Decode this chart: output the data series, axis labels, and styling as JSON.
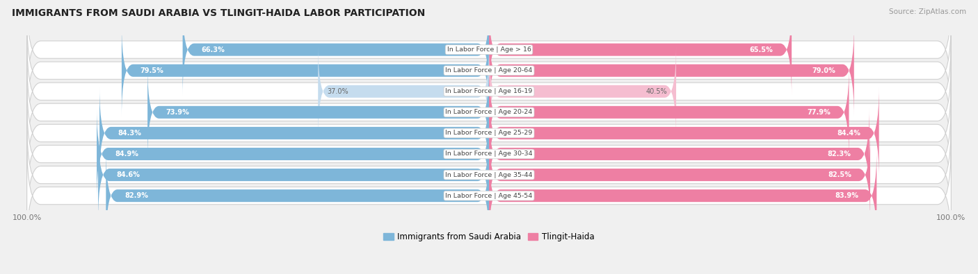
{
  "title": "IMMIGRANTS FROM SAUDI ARABIA VS TLINGIT-HAIDA LABOR PARTICIPATION",
  "source": "Source: ZipAtlas.com",
  "categories": [
    "In Labor Force | Age > 16",
    "In Labor Force | Age 20-64",
    "In Labor Force | Age 16-19",
    "In Labor Force | Age 20-24",
    "In Labor Force | Age 25-29",
    "In Labor Force | Age 30-34",
    "In Labor Force | Age 35-44",
    "In Labor Force | Age 45-54"
  ],
  "saudi_values": [
    66.3,
    79.5,
    37.0,
    73.9,
    84.3,
    84.9,
    84.6,
    82.9
  ],
  "tlingit_values": [
    65.5,
    79.0,
    40.5,
    77.9,
    84.4,
    82.3,
    82.5,
    83.9
  ],
  "saudi_color": "#7eb6d9",
  "saudi_color_light": "#c5dcee",
  "tlingit_color": "#ee7fa3",
  "tlingit_color_light": "#f5bdd0",
  "label_color_dark": "#666666",
  "label_color_white": "#ffffff",
  "bg_color": "#f0f0f0",
  "row_bg_color": "#ffffff",
  "row_border_color": "#d0d0d0",
  "title_color": "#222222",
  "figsize": [
    14.06,
    3.95
  ],
  "dpi": 100,
  "max_val": 100.0
}
